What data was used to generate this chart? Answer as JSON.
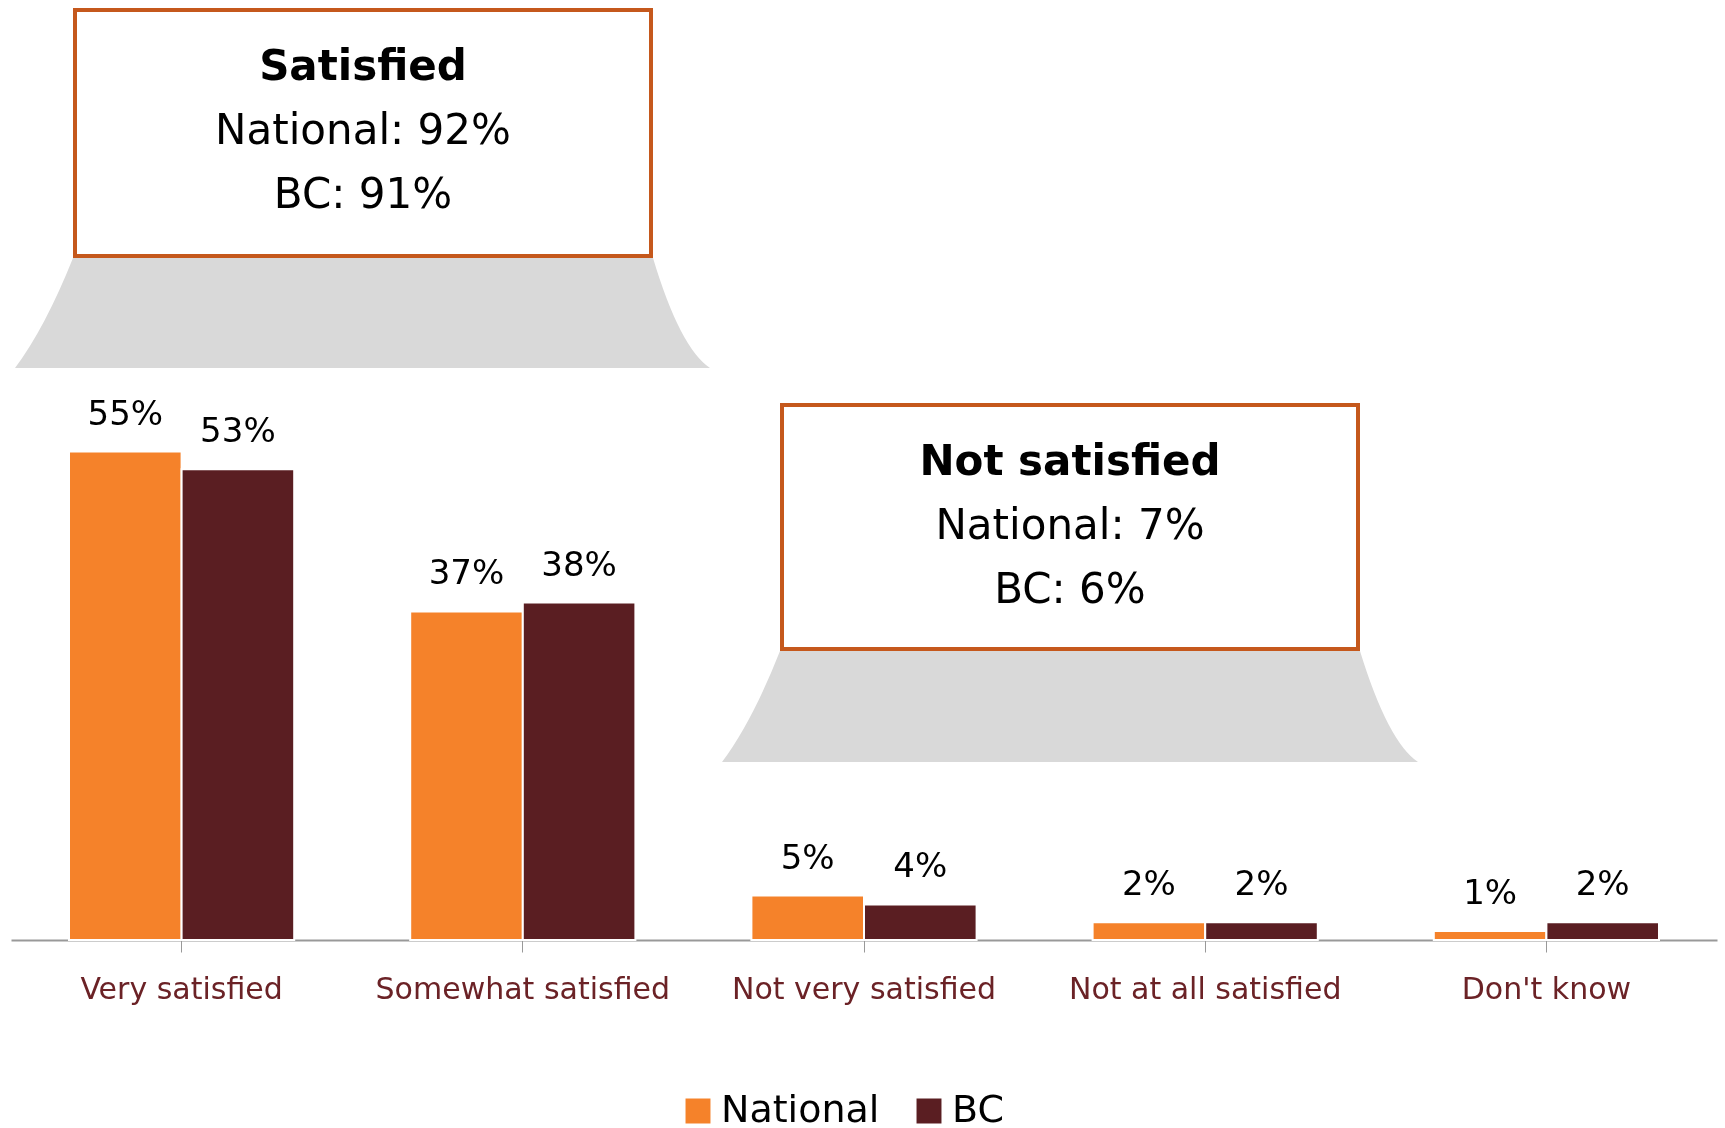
{
  "chart_data": {
    "type": "bar",
    "categories": [
      "Very satisfied",
      "Somewhat satisfied",
      "Not very satisfied",
      "Not at all satisfied",
      "Don't know"
    ],
    "series": [
      {
        "name": "National",
        "color": "#f5822a",
        "values": [
          55,
          37,
          5,
          2,
          1
        ],
        "value_labels": [
          "55%",
          "37%",
          "5%",
          "2%",
          "1%"
        ]
      },
      {
        "name": "BC",
        "color": "#5a1e22",
        "values": [
          53,
          38,
          4,
          2,
          2
        ],
        "value_labels": [
          "53%",
          "38%",
          "4%",
          "2%",
          "2%"
        ]
      }
    ],
    "legend": "bottom",
    "grid": false,
    "annotations": [
      "Satisfied\nNational: 92%\nBC: 91%",
      "Not satisfied\nNational: 7%\nBC: 6%"
    ]
  }
}
